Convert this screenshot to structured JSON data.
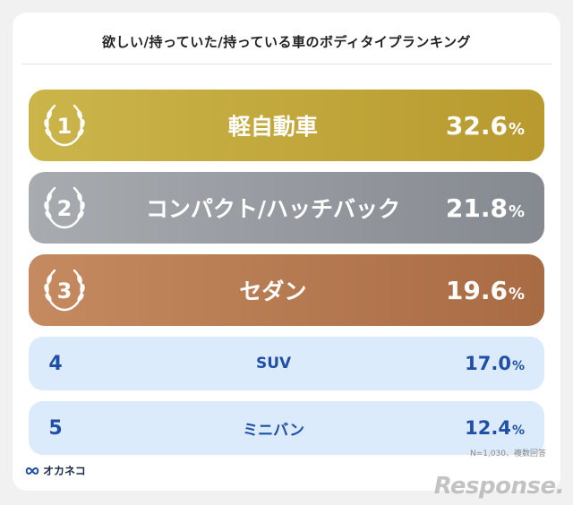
{
  "chart_data": {
    "type": "table",
    "title": "欲しい/持っていた/持っている車のボディタイプランキング",
    "rows": [
      {
        "rank": "1",
        "label": "軽自動車",
        "value": 32.6,
        "value_text": "32.6",
        "unit": "%",
        "style": "gold"
      },
      {
        "rank": "2",
        "label": "コンパクト/ハッチバック",
        "value": 21.8,
        "value_text": "21.8",
        "unit": "%",
        "style": "silver"
      },
      {
        "rank": "3",
        "label": "セダン",
        "value": 19.6,
        "value_text": "19.6",
        "unit": "%",
        "style": "bronze"
      },
      {
        "rank": "4",
        "label": "SUV",
        "value": 17.0,
        "value_text": "17.0",
        "unit": "%",
        "style": "plain"
      },
      {
        "rank": "5",
        "label": "ミニバン",
        "value": 12.4,
        "value_text": "12.4",
        "unit": "%",
        "style": "plain"
      }
    ]
  },
  "footer": {
    "brand": "オカネコ",
    "note": "N=1,030、複数回答",
    "watermark": "Response."
  },
  "colors": {
    "gold": "#c0a43a",
    "silver": "#979aa0",
    "bronze": "#b77a52",
    "plain_bg": "#dcebfb",
    "plain_text": "#1f4fa7"
  }
}
